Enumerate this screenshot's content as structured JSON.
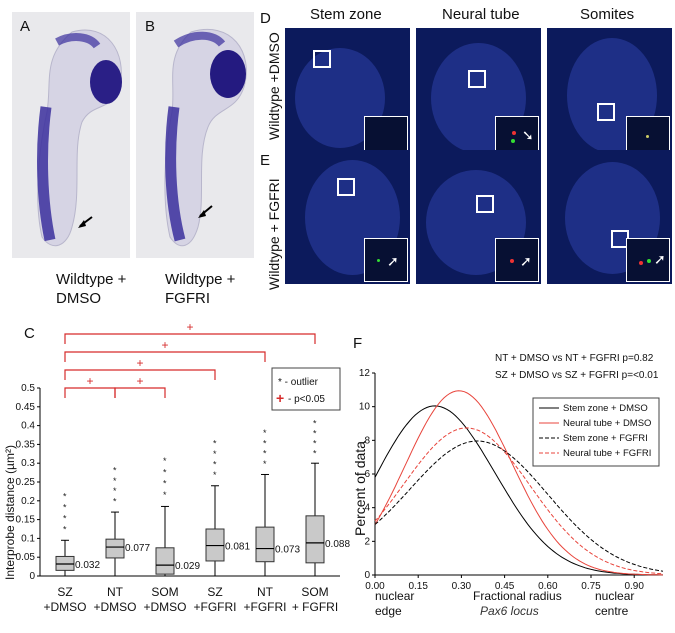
{
  "panel_a": {
    "letter": "A",
    "caption_line1": "Wildtype +",
    "caption_line2": "DMSO"
  },
  "panel_b": {
    "letter": "B",
    "caption_line1": "Wildtype +",
    "caption_line2": "FGFRI"
  },
  "panel_d": {
    "letter": "D",
    "row_label": "Wildtype +DMSO"
  },
  "panel_e": {
    "letter": "E",
    "row_label": "Wildtype + FGFRI"
  },
  "columns": [
    "Stem zone",
    "Neural tube",
    "Somites"
  ],
  "colors": {
    "embryo_stain": "#3b2f9e",
    "micro_bg": "#0c1a5c",
    "significance_red": "#d62b2b",
    "line_black": "#000000",
    "line_red": "#e8453c"
  },
  "chart_data": [
    {
      "type": "box",
      "panel": "C",
      "ylabel": "Interprobe distance (µm²)",
      "ylim": [
        0,
        0.5
      ],
      "yticks": [
        "0",
        "0.05",
        "0.1",
        "0.15",
        "0.2",
        "0.25",
        "0.3",
        "0.35",
        "0.4",
        "0.45",
        "0.5"
      ],
      "categories": [
        {
          "line1": "SZ",
          "line2": "+DMSO"
        },
        {
          "line1": "NT",
          "line2": "+DMSO"
        },
        {
          "line1": "SOM",
          "line2": "+DMSO"
        },
        {
          "line1": "SZ",
          "line2": "+FGFRI"
        },
        {
          "line1": "NT",
          "line2": "+FGFRI"
        },
        {
          "line1": "SOM",
          "line2": "+ FGFRI"
        }
      ],
      "boxes": [
        {
          "q1": 0.015,
          "median": 0.032,
          "q3": 0.052,
          "whisker_low": 0.0,
          "whisker_high": 0.095,
          "median_label": "0.032"
        },
        {
          "q1": 0.048,
          "median": 0.077,
          "q3": 0.098,
          "whisker_low": 0.0,
          "whisker_high": 0.17,
          "median_label": "0.077"
        },
        {
          "q1": 0.005,
          "median": 0.029,
          "q3": 0.075,
          "whisker_low": 0.0,
          "whisker_high": 0.185,
          "median_label": "0.029"
        },
        {
          "q1": 0.04,
          "median": 0.081,
          "q3": 0.125,
          "whisker_low": 0.0,
          "whisker_high": 0.24,
          "median_label": "0.081"
        },
        {
          "q1": 0.038,
          "median": 0.073,
          "q3": 0.13,
          "whisker_low": 0.0,
          "whisker_high": 0.27,
          "median_label": "0.073"
        },
        {
          "q1": 0.035,
          "median": 0.088,
          "q3": 0.16,
          "whisker_low": 0.0,
          "whisker_high": 0.3,
          "median_label": "0.088"
        }
      ],
      "legend": {
        "outlier": "* - outlier",
        "significance": "- p<0.05"
      },
      "significance_marker": "+"
    },
    {
      "type": "line",
      "panel": "F",
      "xlabel": "Fractional radius",
      "xlabel_sub": "Pax6 locus",
      "x_left_label_line1": "nuclear",
      "x_left_label_line2": "edge",
      "x_right_label_line1": "nuclear",
      "x_right_label_line2": "centre",
      "ylabel": "Percent of data",
      "xlim": [
        0,
        1.0
      ],
      "ylim": [
        0,
        12
      ],
      "xticks": [
        "0.00",
        "0.15",
        "0.30",
        "0.45",
        "0.60",
        "0.75",
        "0.90"
      ],
      "yticks": [
        "0",
        "2",
        "4",
        "6",
        "8",
        "10",
        "12"
      ],
      "stats": [
        "NT + DMSO vs NT + FGFRI p=0.82",
        "SZ + DMSO vs SZ + FGFRI p=<0.01"
      ],
      "series": [
        {
          "name": "Stem zone + DMSO",
          "color": "#000000",
          "dash": "solid",
          "mu": 0.2,
          "sigma": 0.21,
          "peak": 10.4,
          "start": 5.8
        },
        {
          "name": "Neural tube + DMSO",
          "color": "#e8453c",
          "dash": "solid",
          "mu": 0.29,
          "sigma": 0.185,
          "peak": 11.0,
          "start": 3.0
        },
        {
          "name": "Stem zone + FGFRI",
          "color": "#000000",
          "dash": "dashed",
          "mu": 0.36,
          "sigma": 0.24,
          "peak": 7.9,
          "start": 3.0
        },
        {
          "name": "Neural tube + FGFRI",
          "color": "#e8453c",
          "dash": "dashed",
          "mu": 0.32,
          "sigma": 0.22,
          "peak": 8.7,
          "start": 3.2
        }
      ]
    }
  ]
}
